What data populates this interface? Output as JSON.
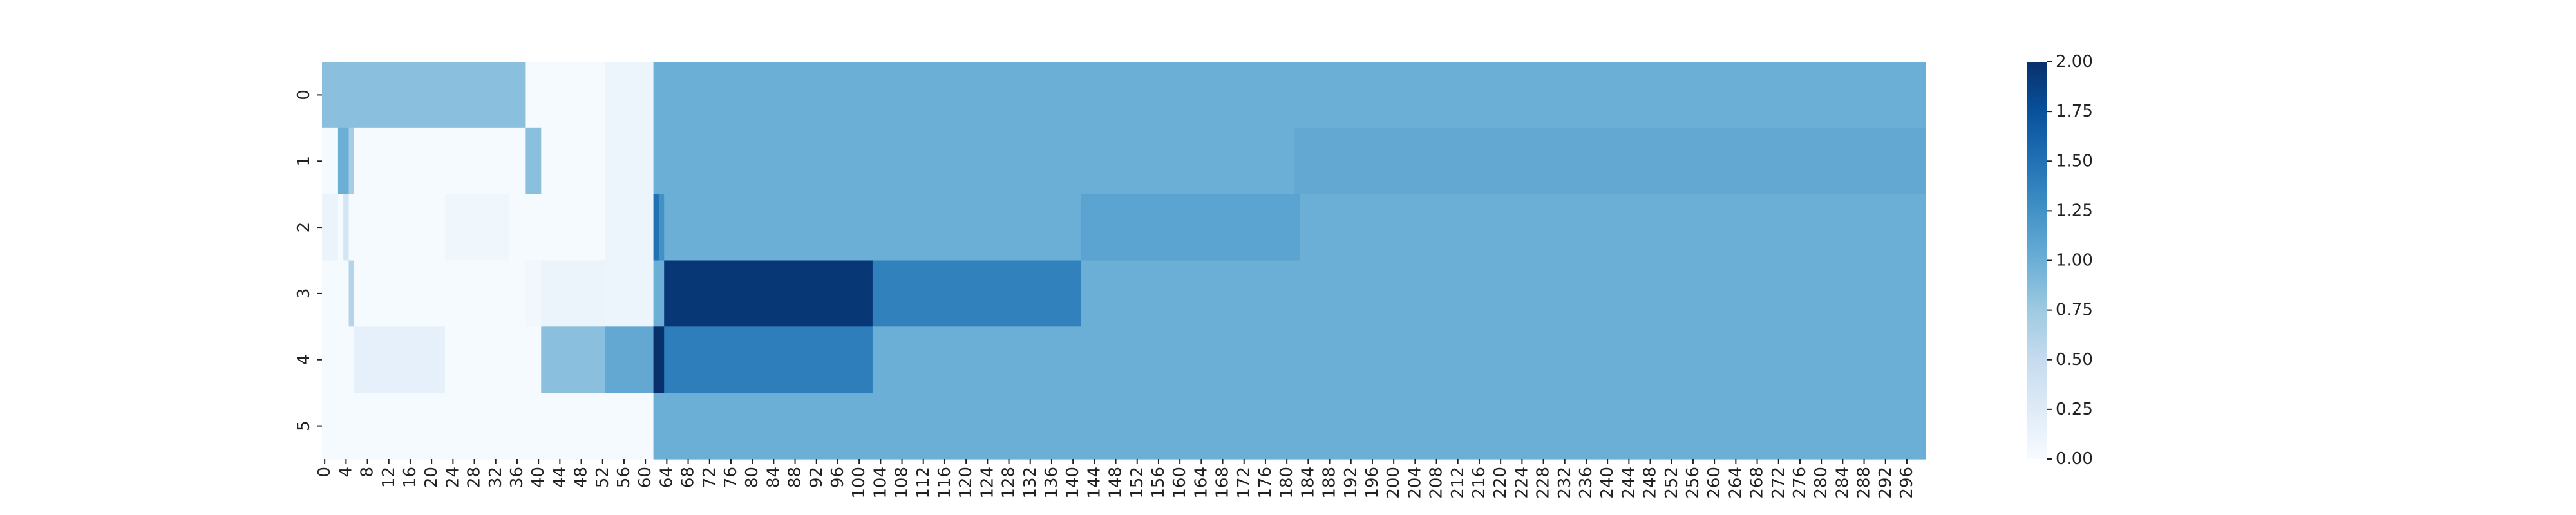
{
  "chart_data": {
    "type": "heatmap",
    "title": "",
    "xlabel": "",
    "ylabel": "",
    "colormap": "Blues",
    "colorbar": {
      "vmin": 0,
      "vmax": 2,
      "ticks": [
        "0.00",
        "0.25",
        "0.50",
        "0.75",
        "1.00",
        "1.25",
        "1.50",
        "1.75",
        "2.00"
      ]
    },
    "x_ticks": [
      "0",
      "4",
      "8",
      "12",
      "16",
      "20",
      "24",
      "28",
      "32",
      "36",
      "40",
      "44",
      "48",
      "52",
      "56",
      "60",
      "64",
      "68",
      "72",
      "76",
      "80",
      "84",
      "88",
      "92",
      "96",
      "100",
      "104",
      "108",
      "112",
      "116",
      "120",
      "124",
      "128",
      "132",
      "136",
      "140",
      "144",
      "148",
      "152",
      "156",
      "160",
      "164",
      "168",
      "172",
      "176",
      "180",
      "184",
      "188",
      "192",
      "196",
      "200",
      "204",
      "208",
      "212",
      "216",
      "220",
      "224",
      "228",
      "232",
      "236",
      "240",
      "244",
      "248",
      "252",
      "256",
      "260",
      "264",
      "268",
      "272",
      "276",
      "280",
      "284",
      "288",
      "292",
      "296"
    ],
    "y_ticks": [
      "0",
      "1",
      "2",
      "3",
      "4",
      "5"
    ],
    "n_columns": 300,
    "rows": [
      {
        "row": "0",
        "segments": [
          [
            0,
            3,
            0.85
          ],
          [
            3,
            38,
            0.85
          ],
          [
            38,
            53,
            0.02
          ],
          [
            53,
            62,
            0.1
          ],
          [
            62,
            300,
            1.0
          ]
        ]
      },
      {
        "row": "1",
        "segments": [
          [
            0,
            3,
            0.02
          ],
          [
            3,
            5,
            1.0
          ],
          [
            5,
            6,
            0.7
          ],
          [
            6,
            38,
            0.02
          ],
          [
            38,
            41,
            0.85
          ],
          [
            41,
            53,
            0.02
          ],
          [
            53,
            62,
            0.1
          ],
          [
            62,
            182,
            1.0
          ],
          [
            182,
            300,
            1.05
          ]
        ]
      },
      {
        "row": "2",
        "segments": [
          [
            0,
            3,
            0.12
          ],
          [
            3,
            4,
            0.02
          ],
          [
            4,
            5,
            0.35
          ],
          [
            5,
            23,
            0.02
          ],
          [
            23,
            35,
            0.08
          ],
          [
            35,
            53,
            0.02
          ],
          [
            53,
            62,
            0.1
          ],
          [
            62,
            63,
            1.5
          ],
          [
            63,
            64,
            1.25
          ],
          [
            64,
            142,
            1.0
          ],
          [
            142,
            183,
            1.1
          ],
          [
            183,
            300,
            1.0
          ]
        ]
      },
      {
        "row": "3",
        "segments": [
          [
            0,
            5,
            0.02
          ],
          [
            5,
            6,
            0.6
          ],
          [
            6,
            38,
            0.02
          ],
          [
            38,
            41,
            0.06
          ],
          [
            41,
            53,
            0.12
          ],
          [
            53,
            62,
            0.1
          ],
          [
            62,
            64,
            1.0
          ],
          [
            64,
            103,
            1.95
          ],
          [
            103,
            142,
            1.38
          ],
          [
            142,
            300,
            1.0
          ]
        ]
      },
      {
        "row": "4",
        "segments": [
          [
            0,
            6,
            0.02
          ],
          [
            6,
            23,
            0.17
          ],
          [
            23,
            41,
            0.02
          ],
          [
            41,
            53,
            0.85
          ],
          [
            53,
            62,
            1.05
          ],
          [
            62,
            64,
            2.0
          ],
          [
            64,
            103,
            1.4
          ],
          [
            103,
            300,
            1.0
          ]
        ]
      },
      {
        "row": "5",
        "segments": [
          [
            0,
            62,
            0.02
          ],
          [
            62,
            300,
            1.0
          ]
        ]
      }
    ]
  }
}
